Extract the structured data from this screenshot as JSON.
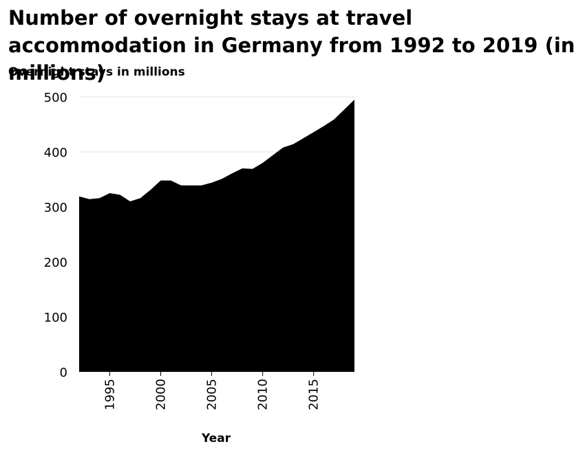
{
  "chart_data": {
    "type": "area",
    "title": "Number of overnight stays at travel accommodation in Germany from 1992 to 2019 (in millions)",
    "xlabel": "Year",
    "ylabel": "Overnight stays in millions",
    "x": [
      1992,
      1993,
      1994,
      1995,
      1996,
      1997,
      1998,
      1999,
      2000,
      2001,
      2002,
      2003,
      2004,
      2005,
      2006,
      2007,
      2008,
      2009,
      2010,
      2011,
      2012,
      2013,
      2014,
      2015,
      2016,
      2017,
      2018,
      2019
    ],
    "values": [
      319,
      314,
      316,
      325,
      322,
      310,
      316,
      331,
      348,
      348,
      339,
      339,
      339,
      344,
      351,
      361,
      370,
      369,
      380,
      394,
      408,
      414,
      425,
      436,
      447,
      459,
      477,
      495
    ],
    "xlim": [
      1992,
      2019
    ],
    "ylim": [
      0,
      500
    ],
    "xticks": [
      1995,
      2000,
      2005,
      2010,
      2015
    ],
    "yticks": [
      0,
      100,
      200,
      300,
      400,
      500
    ],
    "grid": "horizontal",
    "fill_color": "#000000",
    "grid_color": "#e0e0e0"
  }
}
